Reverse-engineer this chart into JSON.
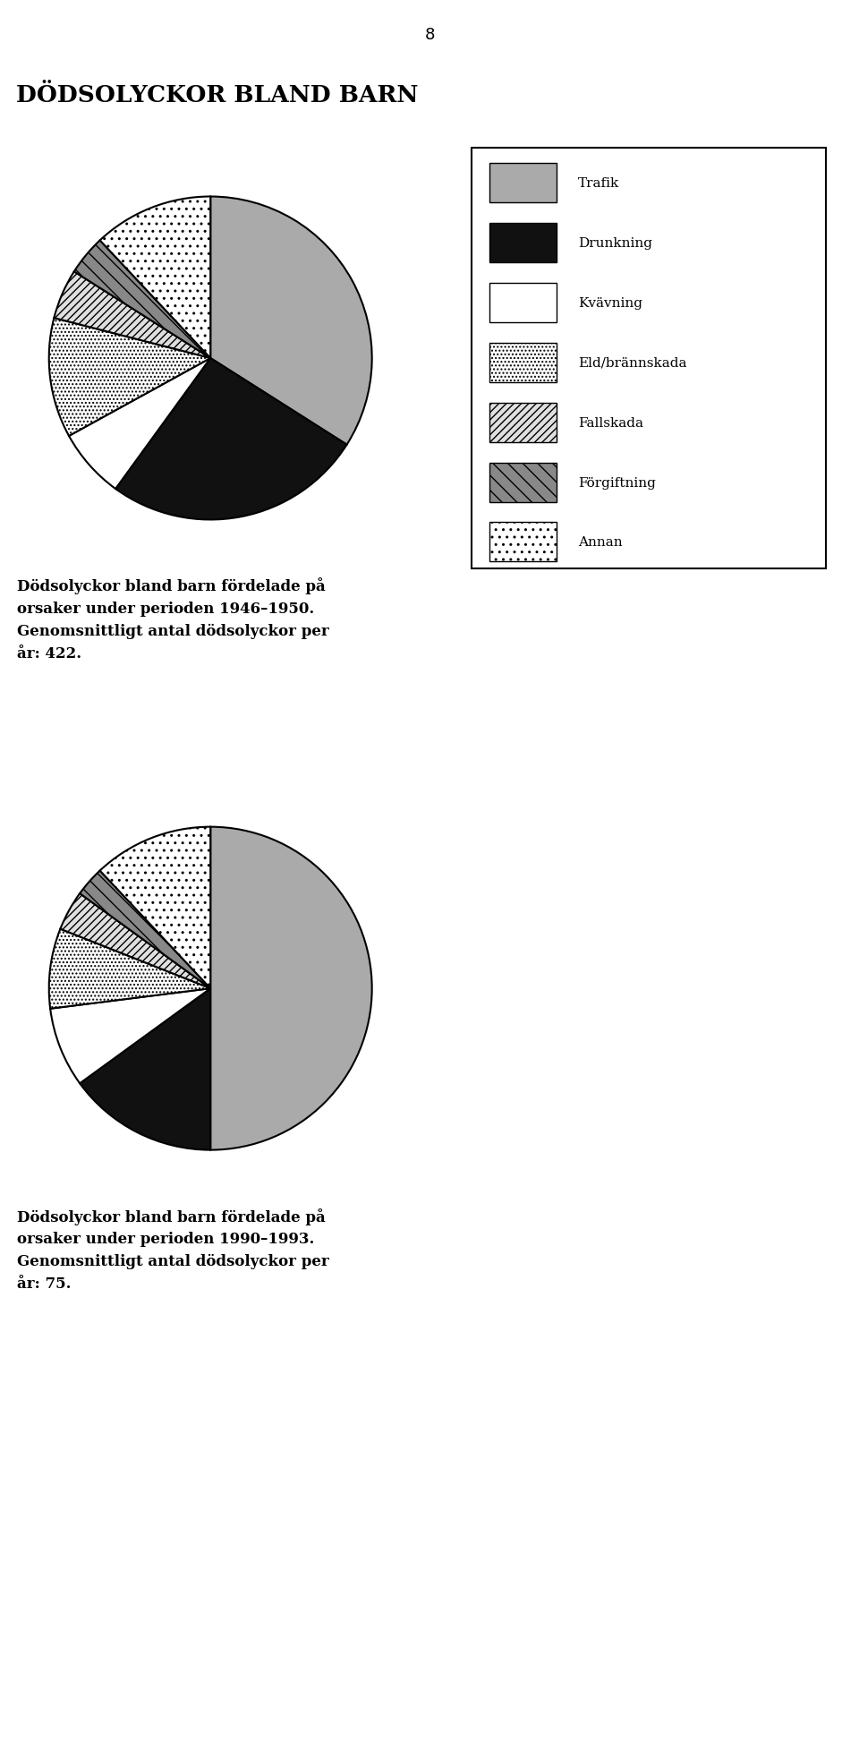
{
  "page_number": "8",
  "main_title": "DÖDSOLYCKOR BLAND BARN",
  "legend_labels": [
    "Trafik",
    "Drunkning",
    "Kvävning",
    "Eld/brännskada",
    "Fallskada",
    "Förgiftning",
    "Annan"
  ],
  "chart1": {
    "values": [
      34,
      26,
      7,
      12,
      5,
      4,
      12
    ],
    "caption_line1": "Dödsolyckor bland barn fördelade på",
    "caption_line2": "orsaker under perioden 1946–1950.",
    "caption_line3": "Genomsnittligt antal dödsolyckor per",
    "caption_line4": "år: 422."
  },
  "chart2": {
    "values": [
      50,
      15,
      8,
      8,
      4,
      3,
      12
    ],
    "caption_line1": "Dödsolyckor bland barn fördelade på",
    "caption_line2": "orsaker under perioden 1990–1993.",
    "caption_line3": "Genomsnittligt antal dödsolyckor per",
    "caption_line4": "år: 75."
  }
}
